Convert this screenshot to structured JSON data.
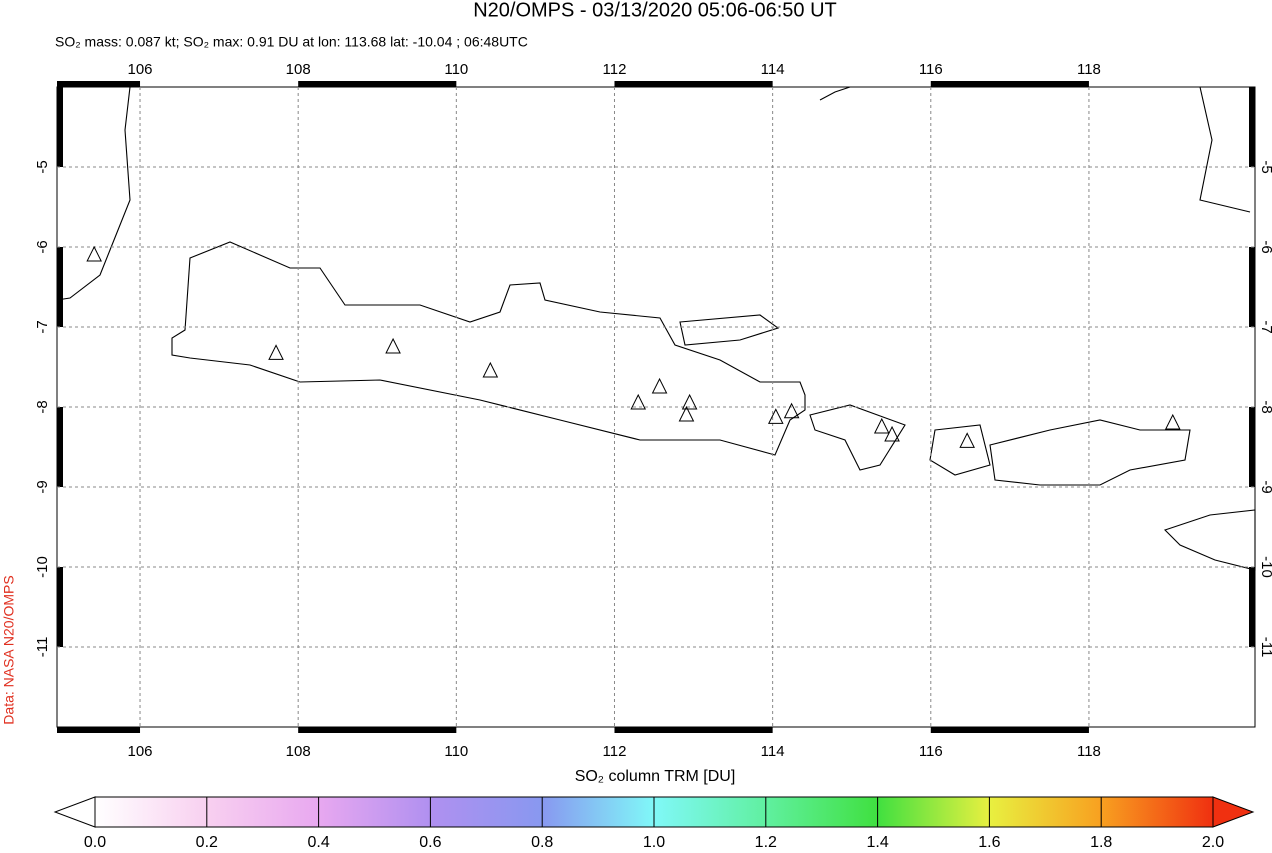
{
  "chart_data": {
    "type": "map",
    "title": "N20/OMPS - 03/13/2020 05:06-06:50 UT",
    "subtitle": "SO₂ mass: 0.087 kt; SO₂ max: 0.91 DU at lon: 113.68 lat: -10.04 ; 06:48UTC",
    "credit": "Data: NASA N20/OMPS",
    "xlim": [
      104.95,
      120.1
    ],
    "ylim": [
      -12,
      -4
    ],
    "xticks": [
      106,
      108,
      110,
      112,
      114,
      116,
      118
    ],
    "yticks": [
      -5,
      -6,
      -7,
      -8,
      -9,
      -10,
      -11
    ],
    "grid": true,
    "markers": {
      "x": [
        105.42,
        107.72,
        109.2,
        110.43,
        112.3,
        112.57,
        112.95,
        112.91,
        114.04,
        114.24,
        115.38,
        115.51,
        116.46,
        119.06
      ],
      "y": [
        -6.1,
        -7.33,
        -7.25,
        -7.55,
        -7.95,
        -7.75,
        -7.95,
        -8.1,
        -8.13,
        -8.06,
        -8.25,
        -8.35,
        -8.43,
        -8.2
      ]
    },
    "colorbar": {
      "label": "SO₂ column TRM [DU]",
      "lim": [
        0,
        2
      ],
      "ticks": [
        {
          "value": 0,
          "label": "0.0"
        },
        {
          "value": 0.2,
          "label": "0.2"
        },
        {
          "value": 0.4,
          "label": "0.4"
        },
        {
          "value": 0.6,
          "label": "0.6"
        },
        {
          "value": 0.8,
          "label": "0.8"
        },
        {
          "value": 1,
          "label": "1.0"
        },
        {
          "value": 1.2,
          "label": "1.2"
        },
        {
          "value": 1.4,
          "label": "1.4"
        },
        {
          "value": 1.6,
          "label": "1.6"
        },
        {
          "value": 1.8,
          "label": "1.8"
        },
        {
          "value": 2,
          "label": "2.0"
        }
      ]
    }
  }
}
